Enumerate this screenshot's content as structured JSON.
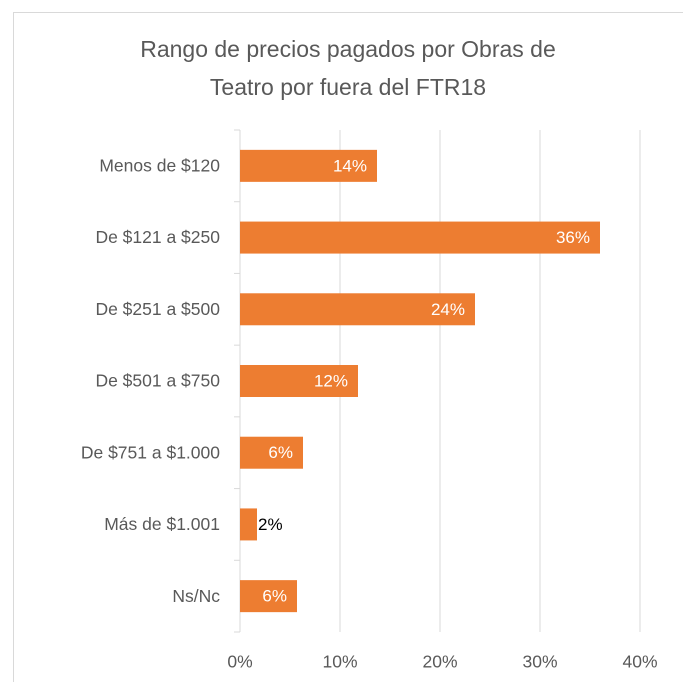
{
  "chart_data": {
    "type": "bar",
    "orientation": "horizontal",
    "title": [
      "Rango de precios pagados por Obras de",
      "Teatro por fuera del FTR18"
    ],
    "categories": [
      "Menos de $120",
      "De $121 a $250",
      "De $251 a $500",
      "De $501 a $750",
      "De $751 a $1.000",
      "Más de $1.001",
      "Ns/Nc"
    ],
    "values": [
      13.7,
      36,
      23.5,
      11.8,
      6.3,
      1.7,
      5.7
    ],
    "value_labels": [
      "14%",
      "36%",
      "24%",
      "12%",
      "6%",
      "2%",
      "6%"
    ],
    "color": "#ed7d31",
    "xlim": [
      0,
      40
    ],
    "xticks": [
      {
        "value": 0,
        "label": "0%"
      },
      {
        "value": 10,
        "label": "10%"
      },
      {
        "value": 20,
        "label": "20%"
      },
      {
        "value": 30,
        "label": "30%"
      },
      {
        "value": 40,
        "label": "40%"
      }
    ],
    "grid": true
  }
}
